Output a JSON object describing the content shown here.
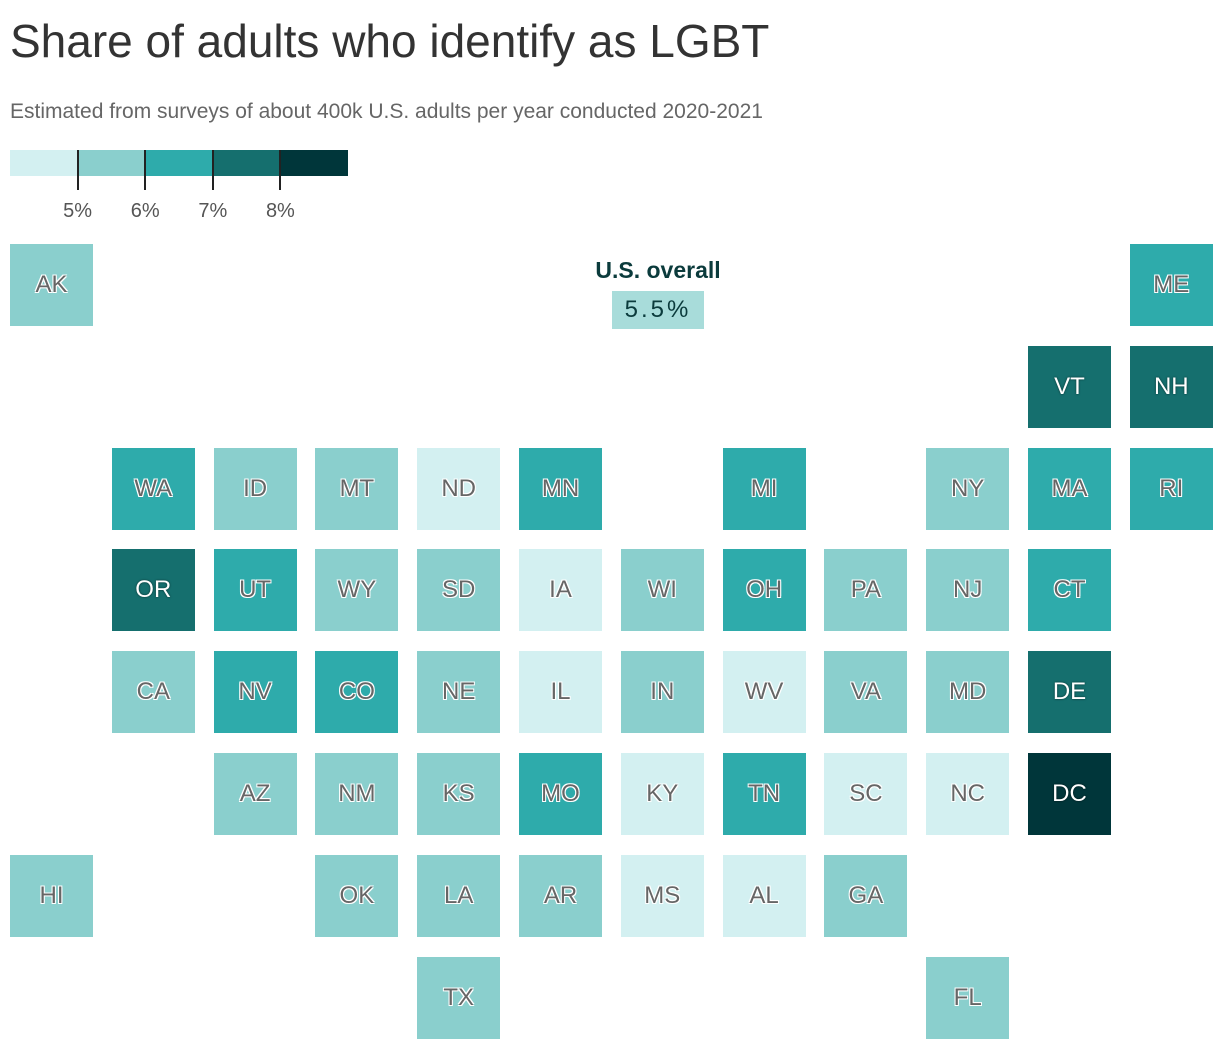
{
  "title": "Share of adults who identify as LGBT",
  "subtitle": "Estimated from surveys of about 400k U.S. adults per year conducted 2020‑2021",
  "legend": {
    "colors": [
      "#d3f0f1",
      "#8acfcd",
      "#2eabab",
      "#156f6e",
      "#00363a"
    ],
    "ticks": [
      "5%",
      "6%",
      "7%",
      "8%"
    ]
  },
  "overall": {
    "label": "U.S. overall",
    "value": "5.5%"
  },
  "chart_data": {
    "type": "table",
    "bins": [
      {
        "range": "<5%",
        "color": "#d3f0f1"
      },
      {
        "range": "5–6%",
        "color": "#8acfcd"
      },
      {
        "range": "6–7%",
        "color": "#2eabab"
      },
      {
        "range": "7–8%",
        "color": "#156f6e"
      },
      {
        "range": ">8%",
        "color": "#00363a"
      }
    ],
    "states": [
      {
        "abbr": "AK",
        "bin": 1,
        "col": 0,
        "row": 0
      },
      {
        "abbr": "ME",
        "bin": 2,
        "col": 11,
        "row": 0
      },
      {
        "abbr": "VT",
        "bin": 3,
        "col": 10,
        "row": 1
      },
      {
        "abbr": "NH",
        "bin": 3,
        "col": 11,
        "row": 1
      },
      {
        "abbr": "WA",
        "bin": 2,
        "col": 1,
        "row": 2
      },
      {
        "abbr": "ID",
        "bin": 1,
        "col": 2,
        "row": 2
      },
      {
        "abbr": "MT",
        "bin": 1,
        "col": 3,
        "row": 2
      },
      {
        "abbr": "ND",
        "bin": 0,
        "col": 4,
        "row": 2
      },
      {
        "abbr": "MN",
        "bin": 2,
        "col": 5,
        "row": 2
      },
      {
        "abbr": "MI",
        "bin": 2,
        "col": 7,
        "row": 2
      },
      {
        "abbr": "NY",
        "bin": 1,
        "col": 9,
        "row": 2
      },
      {
        "abbr": "MA",
        "bin": 2,
        "col": 10,
        "row": 2
      },
      {
        "abbr": "RI",
        "bin": 2,
        "col": 11,
        "row": 2
      },
      {
        "abbr": "OR",
        "bin": 3,
        "col": 1,
        "row": 3
      },
      {
        "abbr": "UT",
        "bin": 2,
        "col": 2,
        "row": 3
      },
      {
        "abbr": "WY",
        "bin": 1,
        "col": 3,
        "row": 3
      },
      {
        "abbr": "SD",
        "bin": 1,
        "col": 4,
        "row": 3
      },
      {
        "abbr": "IA",
        "bin": 0,
        "col": 5,
        "row": 3
      },
      {
        "abbr": "WI",
        "bin": 1,
        "col": 6,
        "row": 3
      },
      {
        "abbr": "OH",
        "bin": 2,
        "col": 7,
        "row": 3
      },
      {
        "abbr": "PA",
        "bin": 1,
        "col": 8,
        "row": 3
      },
      {
        "abbr": "NJ",
        "bin": 1,
        "col": 9,
        "row": 3
      },
      {
        "abbr": "CT",
        "bin": 2,
        "col": 10,
        "row": 3
      },
      {
        "abbr": "CA",
        "bin": 1,
        "col": 1,
        "row": 4
      },
      {
        "abbr": "NV",
        "bin": 2,
        "col": 2,
        "row": 4
      },
      {
        "abbr": "CO",
        "bin": 2,
        "col": 3,
        "row": 4
      },
      {
        "abbr": "NE",
        "bin": 1,
        "col": 4,
        "row": 4
      },
      {
        "abbr": "IL",
        "bin": 0,
        "col": 5,
        "row": 4
      },
      {
        "abbr": "IN",
        "bin": 1,
        "col": 6,
        "row": 4
      },
      {
        "abbr": "WV",
        "bin": 0,
        "col": 7,
        "row": 4
      },
      {
        "abbr": "VA",
        "bin": 1,
        "col": 8,
        "row": 4
      },
      {
        "abbr": "MD",
        "bin": 1,
        "col": 9,
        "row": 4
      },
      {
        "abbr": "DE",
        "bin": 3,
        "col": 10,
        "row": 4
      },
      {
        "abbr": "AZ",
        "bin": 1,
        "col": 2,
        "row": 5
      },
      {
        "abbr": "NM",
        "bin": 1,
        "col": 3,
        "row": 5
      },
      {
        "abbr": "KS",
        "bin": 1,
        "col": 4,
        "row": 5
      },
      {
        "abbr": "MO",
        "bin": 2,
        "col": 5,
        "row": 5
      },
      {
        "abbr": "KY",
        "bin": 0,
        "col": 6,
        "row": 5
      },
      {
        "abbr": "TN",
        "bin": 2,
        "col": 7,
        "row": 5
      },
      {
        "abbr": "SC",
        "bin": 0,
        "col": 8,
        "row": 5
      },
      {
        "abbr": "NC",
        "bin": 0,
        "col": 9,
        "row": 5
      },
      {
        "abbr": "DC",
        "bin": 4,
        "col": 10,
        "row": 5
      },
      {
        "abbr": "HI",
        "bin": 1,
        "col": 0,
        "row": 6
      },
      {
        "abbr": "OK",
        "bin": 1,
        "col": 3,
        "row": 6
      },
      {
        "abbr": "LA",
        "bin": 1,
        "col": 4,
        "row": 6
      },
      {
        "abbr": "AR",
        "bin": 1,
        "col": 5,
        "row": 6
      },
      {
        "abbr": "MS",
        "bin": 0,
        "col": 6,
        "row": 6
      },
      {
        "abbr": "AL",
        "bin": 0,
        "col": 7,
        "row": 6
      },
      {
        "abbr": "GA",
        "bin": 1,
        "col": 8,
        "row": 6
      },
      {
        "abbr": "TX",
        "bin": 1,
        "col": 4,
        "row": 7
      },
      {
        "abbr": "FL",
        "bin": 1,
        "col": 9,
        "row": 7
      }
    ]
  }
}
